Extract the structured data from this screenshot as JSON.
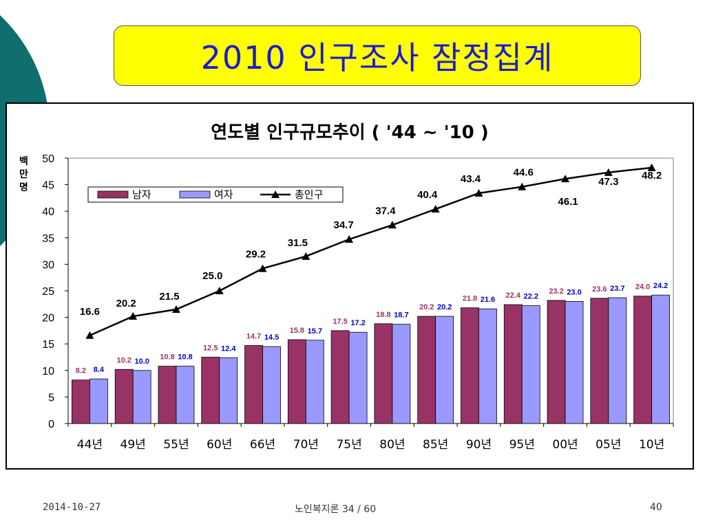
{
  "slide": {
    "title": "2010 인구조사 잠정집계",
    "footer_date": "2014-10-27",
    "footer_center": "노인복지론    34 / 60",
    "footer_page": "40"
  },
  "colors": {
    "title_bg": "#ffff00",
    "title_text": "#1a1ad4",
    "male": "#993366",
    "female": "#9999ff",
    "total": "#000000",
    "male_label": "#993366",
    "female_label": "#0000cc",
    "deco_dark": "#0f6e6e",
    "deco_light": "#9fd0d0"
  },
  "chart_data": {
    "type": "bar",
    "title": "연도별 인구규모추이 ( '44 ~ '10  )",
    "ylabel": "백만명",
    "ylim": [
      0,
      50
    ],
    "yticks": [
      0,
      5,
      10,
      15,
      20,
      25,
      30,
      35,
      40,
      45,
      50
    ],
    "grid": false,
    "legend_position": "top-left",
    "categories": [
      "44년",
      "49년",
      "55년",
      "60년",
      "66년",
      "70년",
      "75년",
      "80년",
      "85년",
      "90년",
      "95년",
      "00년",
      "05년",
      "10년"
    ],
    "series": [
      {
        "name": "남자",
        "type": "bar",
        "values": [
          8.2,
          10.2,
          10.8,
          12.5,
          14.7,
          15.8,
          17.5,
          18.8,
          20.2,
          21.8,
          22.4,
          23.2,
          23.6,
          24.0
        ],
        "labels": [
          "8.2",
          "10.2",
          "10.8",
          "12.5",
          "14.7",
          "15.8",
          "17.5",
          "18.8",
          "20.2",
          "21.8",
          "22.4",
          "23.2",
          "23.6",
          "24.0"
        ]
      },
      {
        "name": "여자",
        "type": "bar",
        "values": [
          8.4,
          10.0,
          10.8,
          12.4,
          14.5,
          15.7,
          17.2,
          18.7,
          20.2,
          21.6,
          22.2,
          23.0,
          23.7,
          24.2
        ],
        "labels": [
          "8.4",
          "10.0",
          "10.8",
          "12.4",
          "14.5",
          "15.7",
          "17.2",
          "18.7",
          "20.2",
          "21.6",
          "22.2",
          "23.0",
          "23.7",
          "24.2"
        ]
      },
      {
        "name": "총인구",
        "type": "line",
        "values": [
          16.6,
          20.2,
          21.5,
          25.0,
          29.2,
          31.5,
          34.7,
          37.4,
          40.4,
          43.4,
          44.6,
          46.1,
          47.3,
          48.2
        ],
        "labels": [
          "16.6",
          "20.2",
          "21.5",
          "25.0",
          "29.2",
          "31.5",
          "34.7",
          "37.4",
          "40.4",
          "43.4",
          "44.6",
          "46.1",
          "47.3",
          "48.2"
        ]
      }
    ]
  }
}
